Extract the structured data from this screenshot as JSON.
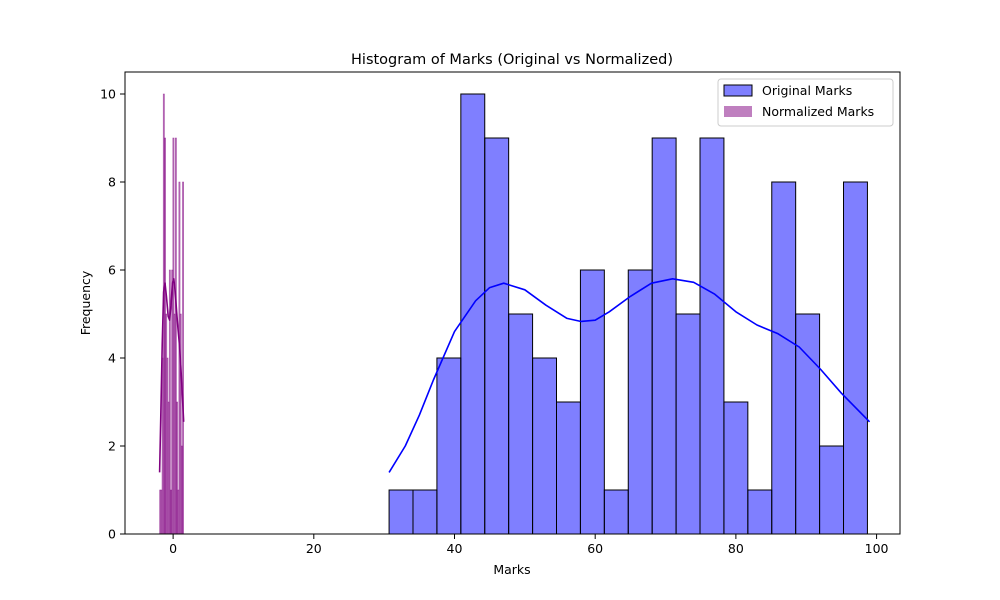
{
  "chart_data": {
    "type": "bar",
    "title": "Histogram of Marks (Original vs Normalized)",
    "xlabel": "Marks",
    "ylabel": "Frequency",
    "xlim": [
      -6.84,
      103.33
    ],
    "ylim": [
      0,
      10.5
    ],
    "xticks": [
      0,
      20,
      40,
      60,
      80,
      100
    ],
    "yticks": [
      0,
      2,
      4,
      6,
      8,
      10
    ],
    "grid": false,
    "legend_position": "top-right",
    "series": [
      {
        "name": "Original Marks",
        "color": "#0000ff",
        "fill_opacity": 0.5,
        "bin_width": 3.4,
        "bin_starts": [
          30.7,
          34.1,
          37.5,
          40.9,
          44.3,
          47.7,
          51.1,
          54.5,
          57.9,
          61.3,
          64.7,
          68.1,
          71.5,
          74.9,
          78.3,
          81.7,
          85.1,
          88.5,
          91.9,
          95.3
        ],
        "values": [
          1,
          1,
          4,
          10,
          9,
          5,
          4,
          3,
          6,
          1,
          6,
          9,
          5,
          9,
          3,
          1,
          8,
          5,
          2,
          8
        ],
        "kde": {
          "x": [
            30.7,
            33,
            35,
            37,
            40,
            43,
            45,
            47,
            50,
            53,
            56,
            58,
            60,
            62,
            65,
            68,
            71,
            74,
            77,
            80,
            83,
            86,
            89,
            92,
            95,
            99
          ],
          "y": [
            1.4,
            2.0,
            2.7,
            3.5,
            4.6,
            5.3,
            5.6,
            5.7,
            5.55,
            5.2,
            4.9,
            4.83,
            4.86,
            5.05,
            5.4,
            5.7,
            5.8,
            5.72,
            5.45,
            5.05,
            4.75,
            4.55,
            4.25,
            3.75,
            3.2,
            2.55
          ]
        }
      },
      {
        "name": "Normalized Marks",
        "color": "#800080",
        "fill_opacity": 0.5,
        "bin_width": 0.171,
        "bin_starts": [
          -1.92,
          -1.749,
          -1.578,
          -1.407,
          -1.236,
          -1.065,
          -0.894,
          -0.723,
          -0.552,
          -0.381,
          -0.21,
          -0.039,
          0.132,
          0.303,
          0.474,
          0.645,
          0.816,
          0.987,
          1.158,
          1.329
        ],
        "values": [
          1,
          1,
          4,
          10,
          9,
          5,
          4,
          3,
          6,
          1,
          6,
          9,
          5,
          9,
          3,
          1,
          8,
          5,
          2,
          8
        ],
        "kde": {
          "x": [
            -1.92,
            -1.75,
            -1.55,
            -1.35,
            -1.15,
            -0.95,
            -0.7,
            -0.5,
            -0.3,
            -0.1,
            0.1,
            0.3,
            0.5,
            0.7,
            0.9,
            1.1,
            1.3,
            1.5
          ],
          "y": [
            1.4,
            2.7,
            4.3,
            5.5,
            5.7,
            5.4,
            4.95,
            4.86,
            5.2,
            5.7,
            5.8,
            5.5,
            5.05,
            4.65,
            4.3,
            3.8,
            3.2,
            2.55
          ]
        }
      }
    ]
  }
}
